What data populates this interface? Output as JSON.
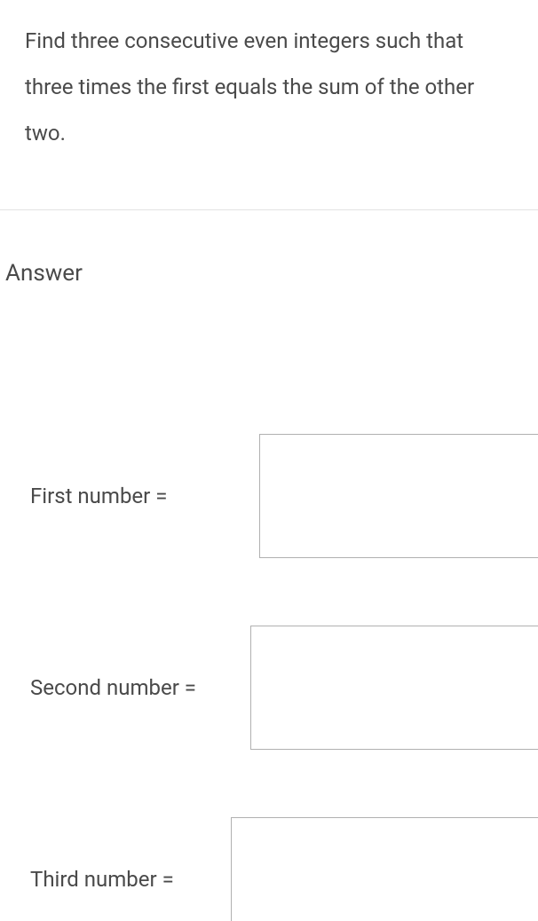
{
  "question": {
    "text": "Find three consecutive even integers such that three times the first equals the sum of the other two."
  },
  "answer_heading": "Answer",
  "inputs": {
    "first": {
      "label": "First number =",
      "value": ""
    },
    "second": {
      "label": "Second number =",
      "value": ""
    },
    "third": {
      "label": "Third number =",
      "value": ""
    }
  },
  "styling": {
    "text_color": "#4a4a4a",
    "background_color": "#ffffff",
    "divider_color": "#e3e3e3",
    "input_border_color": "#b0b0b0",
    "question_fontsize": 24,
    "question_lineheight": 52,
    "heading_fontsize": 26,
    "label_fontsize": 24,
    "input_height": 140
  }
}
